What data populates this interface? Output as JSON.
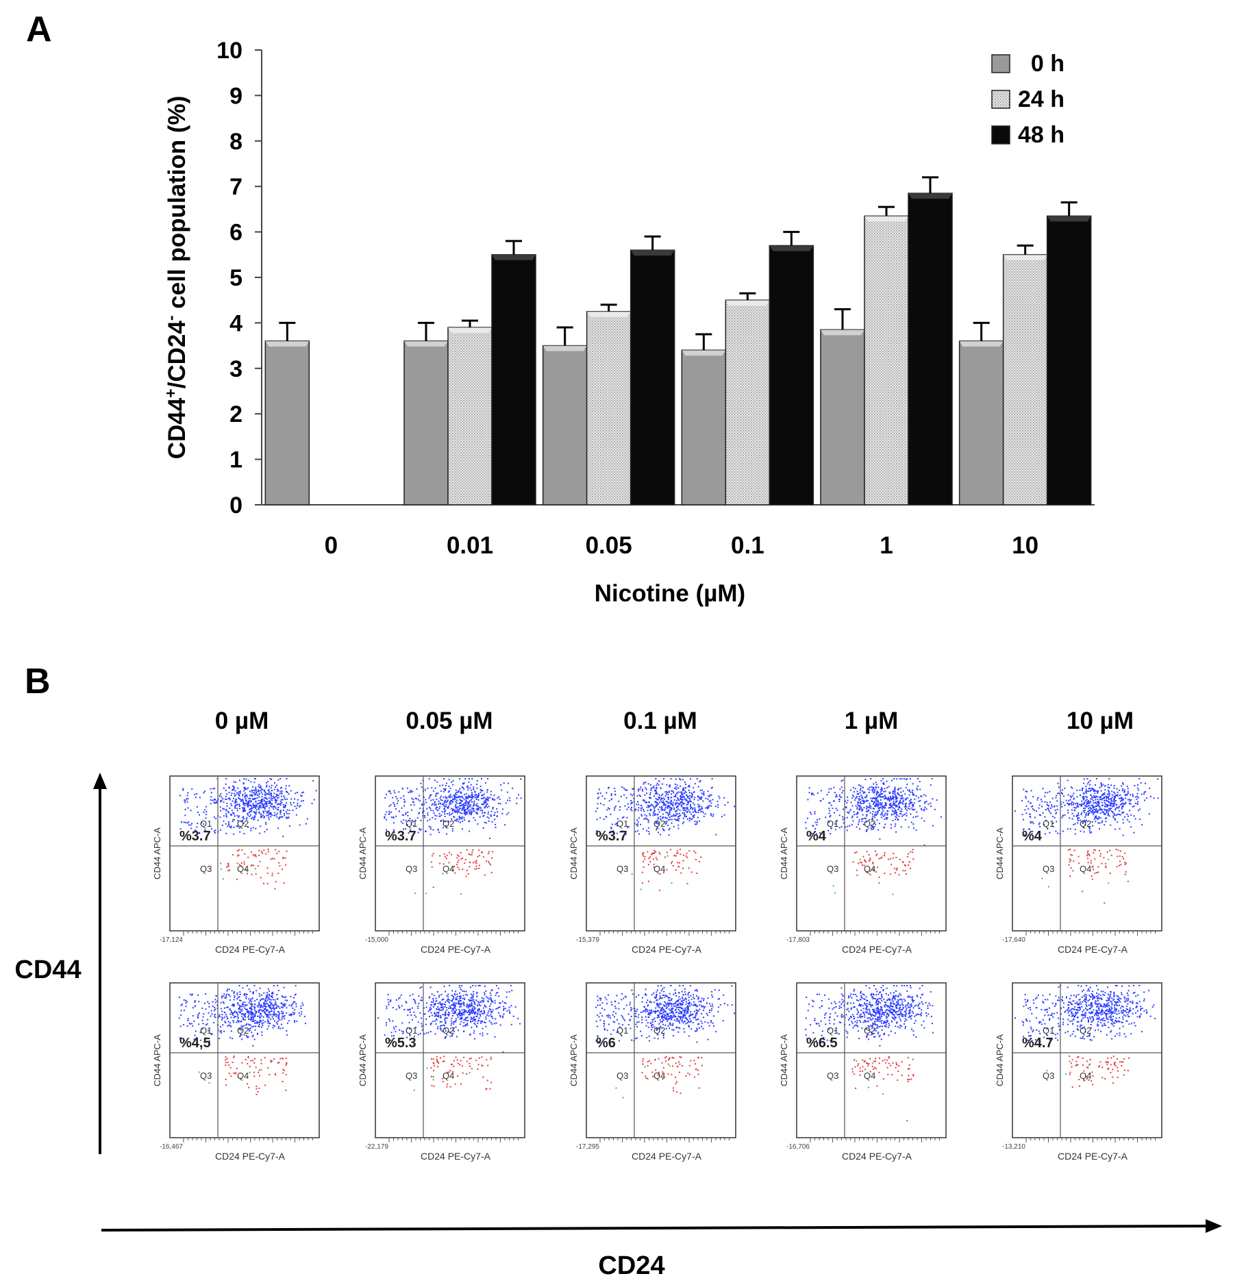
{
  "panel_a": {
    "letter": "A",
    "ylabel_parts": [
      "CD44",
      "+",
      "/CD24",
      "-",
      " cell population (%)"
    ],
    "xlabel": "Nicotine (µM)"
  },
  "panel_b": {
    "letter": "B",
    "y_axis_label": "CD44",
    "x_axis_label": "CD24",
    "conditions": [
      "0 µM",
      "0.05 µM",
      "0.1 µM",
      "1 µM",
      "10 µM"
    ],
    "plot_y_label": "CD44 APC-A",
    "plot_x_label": "CD24 PE-Cy7-A",
    "quadrant_labels": [
      "Q1",
      "Q2",
      "Q3",
      "Q4"
    ],
    "row1_percent": [
      "%3.7",
      "%3.7",
      "%3.7",
      "%4",
      "%4"
    ],
    "row2_percent": [
      "%4,5",
      "%5.3",
      "%6",
      "%6.5",
      "%4.7"
    ],
    "row1_min_tick": [
      "-17,124",
      "-15,000",
      "-15,379",
      "-17,803",
      "-17,640"
    ],
    "row2_min_tick": [
      "-16,467",
      "-22,179",
      "-17,295",
      "-16,706",
      "-13,210"
    ]
  },
  "chart_data": {
    "type": "bar",
    "categories": [
      "0",
      "0.01",
      "0.05",
      "0.1",
      "1",
      "10"
    ],
    "ylim": [
      0,
      10
    ],
    "yticks": [
      0,
      1,
      2,
      3,
      4,
      5,
      6,
      7,
      8,
      9,
      10
    ],
    "series": [
      {
        "name": "0 h",
        "color": "#9a9a9a",
        "values": [
          3.6,
          3.6,
          3.5,
          3.4,
          3.85,
          3.6
        ],
        "errors": [
          0.4,
          0.4,
          0.4,
          0.35,
          0.45,
          0.4
        ]
      },
      {
        "name": "24 h",
        "color": "#d4d4d4",
        "values": [
          null,
          3.9,
          4.25,
          4.5,
          6.35,
          5.5
        ],
        "errors": [
          null,
          0.15,
          0.15,
          0.15,
          0.2,
          0.2
        ]
      },
      {
        "name": "48 h",
        "color": "#0a0a0a",
        "values": [
          null,
          5.5,
          5.6,
          5.7,
          6.85,
          6.35
        ],
        "errors": [
          null,
          0.3,
          0.3,
          0.3,
          0.35,
          0.3
        ]
      }
    ],
    "legend_position": "top-right"
  },
  "colors": {
    "dots_main": "#2a3cff",
    "dots_low": "#e23b3b",
    "dots_green": "#3cc43c"
  }
}
